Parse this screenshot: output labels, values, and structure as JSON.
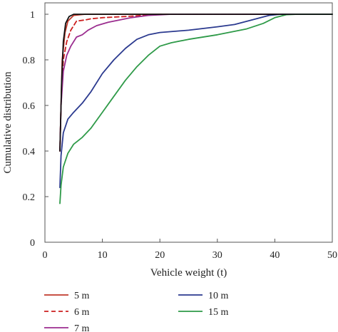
{
  "chart_data": {
    "type": "line",
    "xlabel": "Vehicle weight (t)",
    "ylabel": "Cumulative distribution",
    "xlim": [
      0,
      50
    ],
    "ylim": [
      0,
      1.05
    ],
    "xticks": [
      0,
      10,
      20,
      30,
      40,
      50
    ],
    "yticks": [
      0,
      0.2,
      0.4,
      0.6,
      0.8,
      1
    ],
    "xtick_labels": [
      "0",
      "10",
      "20",
      "30",
      "40",
      "50"
    ],
    "ytick_labels": [
      "0",
      "0.2",
      "0.4",
      "0.6",
      "0.8",
      "1"
    ],
    "grid": false,
    "legend_position": "bottom",
    "series": [
      {
        "name": "5 m",
        "color": "#c0392b",
        "dash": "solid",
        "points": [
          [
            2.6,
            0.4
          ],
          [
            2.8,
            0.6
          ],
          [
            3.0,
            0.8
          ],
          [
            3.5,
            0.92
          ],
          [
            4.0,
            0.97
          ],
          [
            5.0,
            0.995
          ],
          [
            7.0,
            1.0
          ],
          [
            50.0,
            1.0
          ]
        ]
      },
      {
        "name": "6 m",
        "color": "#cc1f1f",
        "dash": "dashed",
        "points": [
          [
            2.6,
            0.4
          ],
          [
            2.8,
            0.6
          ],
          [
            3.2,
            0.8
          ],
          [
            3.8,
            0.88
          ],
          [
            4.5,
            0.93
          ],
          [
            5.5,
            0.97
          ],
          [
            7.0,
            0.975
          ],
          [
            8.0,
            0.98
          ],
          [
            10.0,
            0.985
          ],
          [
            14.0,
            0.99
          ],
          [
            20.0,
            1.0
          ],
          [
            50.0,
            1.0
          ]
        ]
      },
      {
        "name": "7 m",
        "color": "#9b2d8f",
        "dash": "solid",
        "points": [
          [
            2.6,
            0.4
          ],
          [
            2.8,
            0.6
          ],
          [
            3.2,
            0.75
          ],
          [
            3.8,
            0.82
          ],
          [
            4.5,
            0.86
          ],
          [
            5.5,
            0.9
          ],
          [
            6.5,
            0.91
          ],
          [
            7.5,
            0.93
          ],
          [
            9.0,
            0.95
          ],
          [
            11.0,
            0.965
          ],
          [
            13.0,
            0.975
          ],
          [
            15.0,
            0.985
          ],
          [
            18.0,
            0.995
          ],
          [
            22.0,
            1.0
          ],
          [
            50.0,
            1.0
          ]
        ]
      },
      {
        "name": "10 m",
        "color": "#2b3a8f",
        "dash": "solid",
        "points": [
          [
            2.6,
            0.24
          ],
          [
            2.8,
            0.38
          ],
          [
            3.2,
            0.48
          ],
          [
            4.0,
            0.54
          ],
          [
            5.0,
            0.57
          ],
          [
            6.5,
            0.61
          ],
          [
            8.0,
            0.66
          ],
          [
            10.0,
            0.74
          ],
          [
            12.0,
            0.8
          ],
          [
            14.0,
            0.85
          ],
          [
            16.0,
            0.89
          ],
          [
            18.0,
            0.91
          ],
          [
            20.0,
            0.92
          ],
          [
            25.0,
            0.93
          ],
          [
            30.0,
            0.945
          ],
          [
            33.0,
            0.955
          ],
          [
            36.0,
            0.975
          ],
          [
            39.0,
            0.995
          ],
          [
            41.0,
            1.0
          ],
          [
            50.0,
            1.0
          ]
        ]
      },
      {
        "name": "15 m",
        "color": "#2e9a48",
        "dash": "solid",
        "points": [
          [
            2.6,
            0.17
          ],
          [
            2.8,
            0.25
          ],
          [
            3.2,
            0.33
          ],
          [
            4.0,
            0.39
          ],
          [
            5.0,
            0.43
          ],
          [
            6.5,
            0.46
          ],
          [
            8.0,
            0.5
          ],
          [
            10.0,
            0.57
          ],
          [
            12.0,
            0.64
          ],
          [
            14.0,
            0.71
          ],
          [
            16.0,
            0.77
          ],
          [
            18.0,
            0.82
          ],
          [
            20.0,
            0.86
          ],
          [
            22.0,
            0.875
          ],
          [
            25.0,
            0.89
          ],
          [
            30.0,
            0.91
          ],
          [
            35.0,
            0.935
          ],
          [
            38.0,
            0.96
          ],
          [
            40.0,
            0.985
          ],
          [
            42.0,
            0.998
          ],
          [
            44.0,
            1.0
          ],
          [
            50.0,
            1.0
          ]
        ]
      },
      {
        "name": "",
        "color": "#111111",
        "dash": "solid",
        "points": [
          [
            2.6,
            0.4
          ],
          [
            2.9,
            0.7
          ],
          [
            3.2,
            0.88
          ],
          [
            3.6,
            0.96
          ],
          [
            4.2,
            0.99
          ],
          [
            5.0,
            1.0
          ],
          [
            50.0,
            1.0
          ]
        ]
      }
    ]
  }
}
